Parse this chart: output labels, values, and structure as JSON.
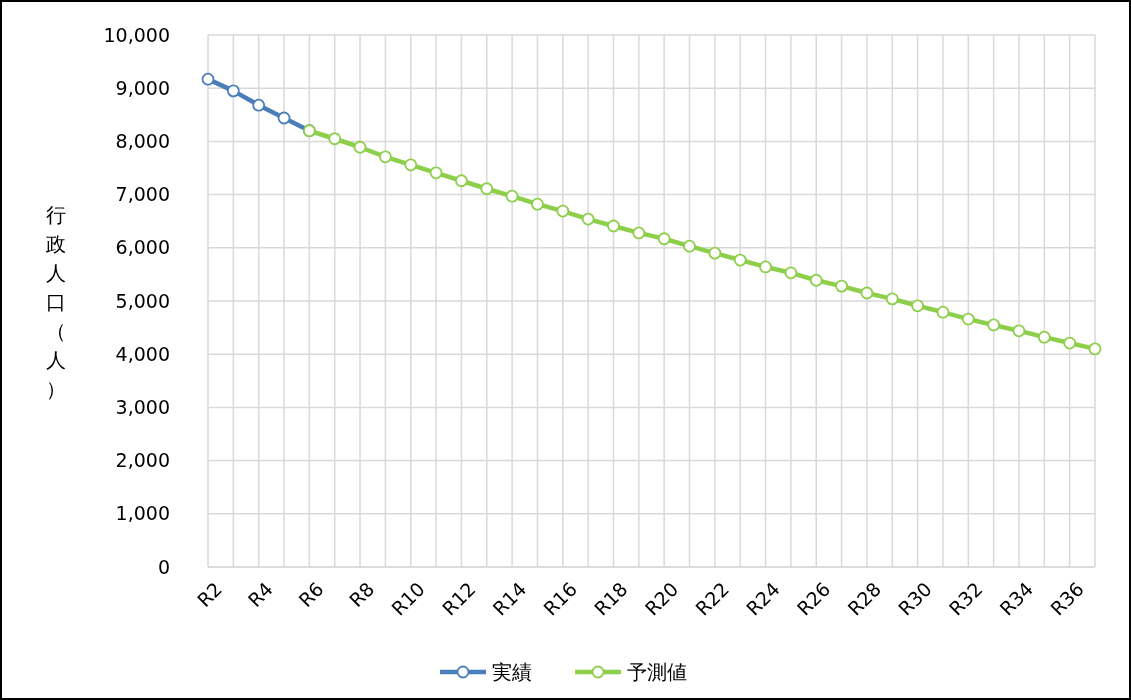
{
  "chart_data": {
    "type": "line",
    "ylabel": "行政人口（人）",
    "categories": [
      "R2",
      null,
      "R4",
      null,
      "R6",
      null,
      "R8",
      null,
      "R10",
      null,
      "R12",
      null,
      "R14",
      null,
      "R16",
      null,
      "R18",
      null,
      "R20",
      null,
      "R22",
      null,
      "R24",
      null,
      "R26",
      null,
      "R28",
      null,
      "R30",
      null,
      "R32",
      null,
      "R34",
      null,
      "R36",
      null
    ],
    "series": [
      {
        "name": "実績",
        "color": "#4a7ebb",
        "values": [
          9170,
          8950,
          8680,
          8440,
          8200,
          null,
          null,
          null,
          null,
          null,
          null,
          null,
          null,
          null,
          null,
          null,
          null,
          null,
          null,
          null,
          null,
          null,
          null,
          null,
          null,
          null,
          null,
          null,
          null,
          null,
          null,
          null,
          null,
          null,
          null,
          null
        ]
      },
      {
        "name": "予測値",
        "color": "#8dcf4a",
        "values": [
          null,
          null,
          null,
          null,
          8200,
          8050,
          7890,
          7710,
          7560,
          7410,
          7260,
          7110,
          6970,
          6820,
          6690,
          6540,
          6410,
          6280,
          6170,
          6030,
          5900,
          5770,
          5640,
          5530,
          5390,
          5280,
          5150,
          5040,
          4910,
          4790,
          4660,
          4550,
          4440,
          4320,
          4210,
          4100
        ]
      }
    ],
    "ylim": [
      0,
      10000
    ],
    "yticks": [
      0,
      {
        "value": 1000,
        "label": "1,000"
      },
      {
        "value": 2000,
        "label": "2,000"
      },
      {
        "value": 3000,
        "label": "3,000"
      },
      {
        "value": 4000,
        "label": "4,000"
      },
      {
        "value": 5000,
        "label": "5,000"
      },
      {
        "value": 6000,
        "label": "6,000"
      },
      {
        "value": 7000,
        "label": "7,000"
      },
      {
        "value": 8000,
        "label": "8,000"
      },
      {
        "value": 9000,
        "label": "9,000"
      },
      {
        "value": 10000,
        "label": "10,000"
      }
    ],
    "grid": true,
    "legend": "bottom",
    "marker": "circle",
    "line_style": "solid"
  }
}
